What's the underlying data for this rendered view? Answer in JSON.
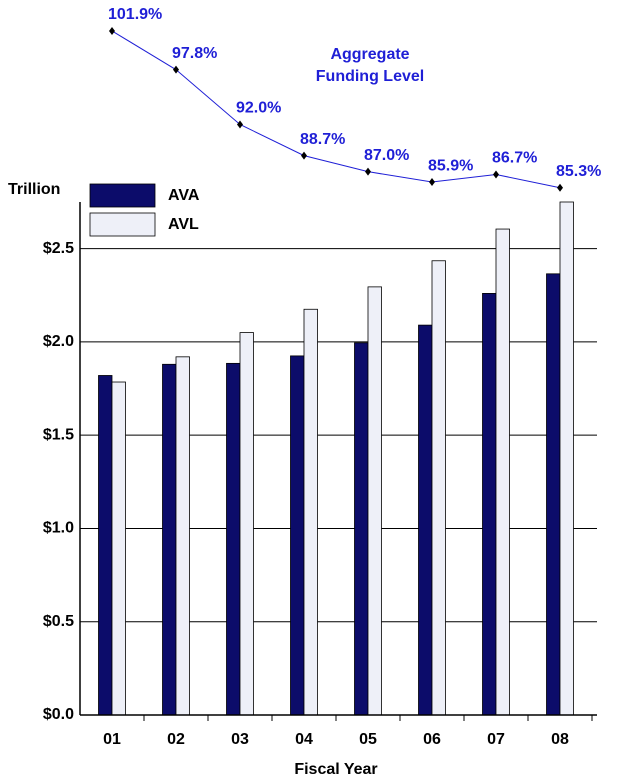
{
  "chart_data": {
    "type": "bar",
    "y_label": "Trillion",
    "x_label": "Fiscal Year",
    "annotation": "Aggregate Funding Level",
    "categories": [
      "01",
      "02",
      "03",
      "04",
      "05",
      "06",
      "07",
      "08"
    ],
    "series": [
      {
        "name": "AVA",
        "color": "#0c0c6a",
        "values": [
          1.82,
          1.88,
          1.885,
          1.925,
          1.995,
          2.09,
          2.26,
          2.365
        ]
      },
      {
        "name": "AVL",
        "color": "#eef0f8",
        "values": [
          1.785,
          1.92,
          2.05,
          2.175,
          2.295,
          2.435,
          2.605,
          2.75
        ]
      },
      {
        "name": "Aggregate Funding Level",
        "type": "line",
        "axis": "y2",
        "color": "#1f1fd6",
        "values": [
          101.9,
          97.8,
          92.0,
          88.7,
          87.0,
          85.9,
          86.7,
          85.3
        ],
        "value_labels": [
          "101.9%",
          "97.8%",
          "92.0%",
          "88.7%",
          "87.0%",
          "85.9%",
          "86.7%",
          "85.3%"
        ]
      }
    ],
    "ylim": [
      0,
      2.75
    ],
    "yticks": [
      {
        "value": 0,
        "label": "$0.0"
      },
      {
        "value": 0.5,
        "label": "$0.5"
      },
      {
        "value": 1.0,
        "label": "$1.0"
      },
      {
        "value": 1.5,
        "label": "$1.5"
      },
      {
        "value": 2.0,
        "label": "$2.0"
      },
      {
        "value": 2.5,
        "label": "$2.5"
      }
    ],
    "y2lim": [
      84,
      102
    ],
    "grid": true
  }
}
